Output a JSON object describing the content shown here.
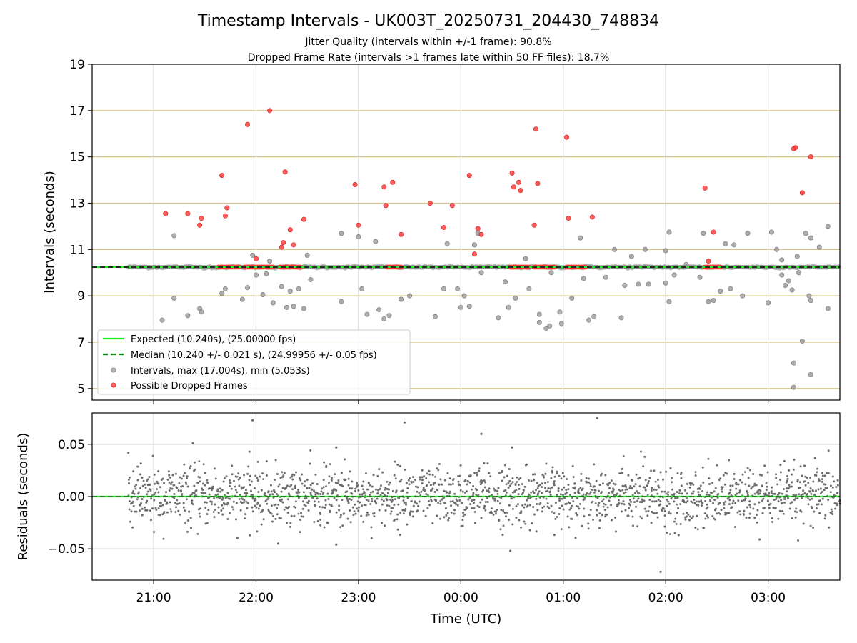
{
  "chart_data": [
    {
      "type": "scatter",
      "title": "Timestamp Intervals - UK003T_20250731_204430_748834",
      "subtitle_lines": [
        "Jitter Quality (intervals within +/-1 frame): 90.8%",
        "Dropped Frame Rate (intervals >1 frames late within 50 FF files): 18.7%"
      ],
      "ylabel": "Intervals (seconds)",
      "xlim": [
        "20:24",
        "03:42"
      ],
      "ylim": [
        4.5,
        19
      ],
      "yticks": [
        5,
        7,
        9,
        11,
        13,
        15,
        17,
        19
      ],
      "grid": true,
      "legend_position": "lower-left",
      "colors": {
        "expected": "#22ee22",
        "median": "#118811",
        "intervals": "#999999",
        "dropped": "#ff3333",
        "hgrid": "#d4c48a"
      },
      "expected_value": 10.24,
      "median_value": 10.24,
      "band": {
        "from": "20:45",
        "to": "03:42",
        "low": 10.16,
        "high": 10.32
      },
      "series": [
        {
          "name": "Intervals, max (17.004s), min (5.053s)",
          "role": "intervals",
          "points": [
            [
              "21:05",
              7.95
            ],
            [
              "21:12",
              11.6
            ],
            [
              "21:12",
              8.9
            ],
            [
              "21:20",
              8.15
            ],
            [
              "21:27",
              8.45
            ],
            [
              "21:28",
              8.3
            ],
            [
              "21:40",
              9.1
            ],
            [
              "21:42",
              9.3
            ],
            [
              "21:52",
              8.85
            ],
            [
              "21:55",
              9.35
            ],
            [
              "21:58",
              10.75
            ],
            [
              "22:00",
              9.9
            ],
            [
              "22:04",
              9.05
            ],
            [
              "22:06",
              9.95
            ],
            [
              "22:08",
              10.5
            ],
            [
              "22:10",
              8.7
            ],
            [
              "22:15",
              9.4
            ],
            [
              "22:18",
              8.5
            ],
            [
              "22:20",
              9.2
            ],
            [
              "22:22",
              8.55
            ],
            [
              "22:25",
              9.3
            ],
            [
              "22:28",
              8.45
            ],
            [
              "22:30",
              10.75
            ],
            [
              "22:32",
              9.7
            ],
            [
              "22:50",
              11.7
            ],
            [
              "22:50",
              8.75
            ],
            [
              "23:00",
              11.55
            ],
            [
              "23:02",
              9.3
            ],
            [
              "23:05",
              8.2
            ],
            [
              "23:10",
              11.35
            ],
            [
              "23:12",
              8.4
            ],
            [
              "23:15",
              8.0
            ],
            [
              "23:18",
              8.15
            ],
            [
              "23:25",
              8.85
            ],
            [
              "23:30",
              9.0
            ],
            [
              "23:45",
              8.1
            ],
            [
              "23:50",
              9.3
            ],
            [
              "23:52",
              11.25
            ],
            [
              "23:58",
              9.3
            ],
            [
              "00:00",
              8.5
            ],
            [
              "00:02",
              9.0
            ],
            [
              "00:05",
              8.55
            ],
            [
              "00:08",
              11.2
            ],
            [
              "00:10",
              11.7
            ],
            [
              "00:12",
              10.0
            ],
            [
              "00:22",
              8.05
            ],
            [
              "00:26",
              9.6
            ],
            [
              "00:28",
              8.5
            ],
            [
              "00:32",
              8.9
            ],
            [
              "00:38",
              10.6
            ],
            [
              "00:40",
              9.3
            ],
            [
              "00:46",
              7.85
            ],
            [
              "00:46",
              8.2
            ],
            [
              "00:50",
              7.6
            ],
            [
              "00:52",
              7.7
            ],
            [
              "00:53",
              10.0
            ],
            [
              "00:58",
              8.3
            ],
            [
              "00:59",
              7.8
            ],
            [
              "01:05",
              8.9
            ],
            [
              "01:10",
              11.5
            ],
            [
              "01:12",
              9.75
            ],
            [
              "01:15",
              7.95
            ],
            [
              "01:18",
              8.1
            ],
            [
              "01:25",
              9.8
            ],
            [
              "01:30",
              11.0
            ],
            [
              "01:34",
              8.05
            ],
            [
              "01:36",
              9.45
            ],
            [
              "01:40",
              10.7
            ],
            [
              "01:44",
              9.5
            ],
            [
              "01:48",
              11.0
            ],
            [
              "01:50",
              9.5
            ],
            [
              "02:00",
              10.95
            ],
            [
              "02:00",
              9.55
            ],
            [
              "02:02",
              11.75
            ],
            [
              "02:02",
              8.75
            ],
            [
              "02:05",
              9.9
            ],
            [
              "02:12",
              10.35
            ],
            [
              "02:20",
              9.8
            ],
            [
              "02:22",
              11.7
            ],
            [
              "02:25",
              8.75
            ],
            [
              "02:28",
              8.8
            ],
            [
              "02:32",
              9.2
            ],
            [
              "02:35",
              11.25
            ],
            [
              "02:38",
              9.3
            ],
            [
              "02:40",
              11.2
            ],
            [
              "02:45",
              9.0
            ],
            [
              "02:48",
              11.7
            ],
            [
              "03:00",
              8.7
            ],
            [
              "03:02",
              11.75
            ],
            [
              "03:05",
              11.0
            ],
            [
              "03:08",
              10.55
            ],
            [
              "03:08",
              9.9
            ],
            [
              "03:10",
              9.45
            ],
            [
              "03:12",
              9.65
            ],
            [
              "03:14",
              9.25
            ],
            [
              "03:15",
              6.1
            ],
            [
              "03:15",
              5.05
            ],
            [
              "03:17",
              10.7
            ],
            [
              "03:18",
              10.0
            ],
            [
              "03:20",
              7.05
            ],
            [
              "03:22",
              11.7
            ],
            [
              "03:24",
              9.0
            ],
            [
              "03:25",
              11.5
            ],
            [
              "03:25",
              8.8
            ],
            [
              "03:25",
              5.6
            ],
            [
              "03:30",
              11.1
            ],
            [
              "03:35",
              12.0
            ],
            [
              "03:35",
              8.45
            ]
          ]
        },
        {
          "name": "Possible Dropped Frames",
          "role": "dropped",
          "points": [
            [
              "21:07",
              12.55
            ],
            [
              "21:20",
              12.55
            ],
            [
              "21:27",
              12.05
            ],
            [
              "21:28",
              12.35
            ],
            [
              "21:40",
              14.2
            ],
            [
              "21:42",
              12.45
            ],
            [
              "21:43",
              12.8
            ],
            [
              "21:55",
              16.4
            ],
            [
              "22:00",
              10.6
            ],
            [
              "22:08",
              17.0
            ],
            [
              "22:15",
              11.1
            ],
            [
              "22:16",
              11.3
            ],
            [
              "22:17",
              14.35
            ],
            [
              "22:20",
              11.85
            ],
            [
              "22:22",
              11.2
            ],
            [
              "22:28",
              12.3
            ],
            [
              "22:58",
              13.8
            ],
            [
              "23:00",
              12.05
            ],
            [
              "23:15",
              13.7
            ],
            [
              "23:16",
              12.9
            ],
            [
              "23:20",
              13.9
            ],
            [
              "23:25",
              11.65
            ],
            [
              "23:42",
              13.0
            ],
            [
              "23:50",
              11.95
            ],
            [
              "23:55",
              12.9
            ],
            [
              "00:05",
              14.2
            ],
            [
              "00:08",
              10.8
            ],
            [
              "00:10",
              11.9
            ],
            [
              "00:12",
              11.65
            ],
            [
              "00:30",
              14.3
            ],
            [
              "00:31",
              13.7
            ],
            [
              "00:34",
              13.9
            ],
            [
              "00:35",
              13.55
            ],
            [
              "00:43",
              12.05
            ],
            [
              "00:44",
              16.2
            ],
            [
              "00:45",
              13.85
            ],
            [
              "01:02",
              15.85
            ],
            [
              "01:03",
              12.35
            ],
            [
              "01:17",
              12.4
            ],
            [
              "02:23",
              13.65
            ],
            [
              "02:25",
              10.5
            ],
            [
              "02:28",
              11.75
            ],
            [
              "03:15",
              15.35
            ],
            [
              "03:16",
              15.4
            ],
            [
              "03:20",
              13.45
            ],
            [
              "03:25",
              15.0
            ]
          ]
        },
        {
          "name": "Possible Dropped Frames",
          "role": "dropped-clusters",
          "clusters": [
            {
              "from": "21:38",
              "to": "21:50",
              "value": 10.24
            },
            {
              "from": "21:53",
              "to": "22:10",
              "value": 10.24
            },
            {
              "from": "22:14",
              "to": "22:26",
              "value": 10.24
            },
            {
              "from": "23:17",
              "to": "23:25",
              "value": 10.24
            },
            {
              "from": "00:29",
              "to": "00:40",
              "value": 10.24
            },
            {
              "from": "00:43",
              "to": "00:55",
              "value": 10.24
            },
            {
              "from": "01:02",
              "to": "01:13",
              "value": 10.24
            },
            {
              "from": "02:23",
              "to": "02:32",
              "value": 10.24
            }
          ]
        }
      ],
      "lines": [
        {
          "name": "Expected (10.240s), (25.00000 fps)",
          "role": "expected",
          "value": 10.24
        },
        {
          "name": "Median (10.240 +/- 0.021 s), (24.99956 +/- 0.05 fps)",
          "role": "median",
          "value": 10.24
        }
      ]
    },
    {
      "type": "scatter",
      "xlabel": "Time (UTC)",
      "ylabel": "Residuals (seconds)",
      "xlim": [
        "20:24",
        "03:42"
      ],
      "xticks": [
        "21:00",
        "22:00",
        "23:00",
        "00:00",
        "01:00",
        "02:00",
        "03:00"
      ],
      "ylim": [
        -0.08,
        0.08
      ],
      "yticks": [
        0.05,
        0.0,
        -0.05
      ],
      "ytick_labels": [
        "0.05",
        "0.00",
        "−0.05"
      ],
      "grid": true,
      "colors": {
        "points": "#6e6e6e",
        "zero_line": "#22ee22",
        "zero_dash": "#118811"
      },
      "residual_range": {
        "from": "20:45",
        "to": "03:42"
      },
      "residual_spread": 0.014,
      "outliers": [
        [
          "21:23",
          0.051
        ],
        [
          "21:58",
          0.073
        ],
        [
          "22:47",
          0.047
        ],
        [
          "23:27",
          0.071
        ],
        [
          "00:12",
          0.06
        ],
        [
          "00:30",
          0.047
        ],
        [
          "01:20",
          0.075
        ],
        [
          "00:29",
          -0.052
        ],
        [
          "01:57",
          -0.072
        ],
        [
          "22:47",
          -0.046
        ],
        [
          "22:13",
          -0.045
        ],
        [
          "02:55",
          -0.041
        ]
      ]
    }
  ]
}
